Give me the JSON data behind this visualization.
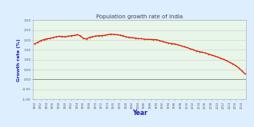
{
  "title": "Population growth rate of India",
  "xlabel": "Year",
  "ylabel": "Growth rate (%)",
  "background_color": "#e8f5e9",
  "outer_background": "#ddeeff",
  "line_color": "#dd2200",
  "title_color": "#444444",
  "label_color": "#2222aa",
  "ylim": [
    -1.0,
    3.0
  ],
  "yticks": [
    3.0,
    2.5,
    2.0,
    1.5,
    1.0,
    0.5,
    0.0,
    -0.5,
    -1.0
  ],
  "ytick_labels": [
    "3.00",
    "2.50",
    "2.00",
    "1.50",
    "1.00",
    "0.50",
    "0.00",
    "-0.50",
    "-1.00"
  ],
  "year_start": 1950,
  "year_end": 2019,
  "xtick_step": 2,
  "growth_data": {
    "years": [
      1950,
      1951,
      1952,
      1953,
      1954,
      1955,
      1956,
      1957,
      1958,
      1959,
      1960,
      1961,
      1962,
      1963,
      1964,
      1965,
      1966,
      1967,
      1968,
      1969,
      1970,
      1971,
      1972,
      1973,
      1974,
      1975,
      1976,
      1977,
      1978,
      1979,
      1980,
      1981,
      1982,
      1983,
      1984,
      1985,
      1986,
      1987,
      1988,
      1989,
      1990,
      1991,
      1992,
      1993,
      1994,
      1995,
      1996,
      1997,
      1998,
      1999,
      2000,
      2001,
      2002,
      2003,
      2004,
      2005,
      2006,
      2007,
      2008,
      2009,
      2010,
      2011,
      2012,
      2013,
      2014,
      2015,
      2016,
      2017,
      2018,
      2019
    ],
    "values": [
      1.8,
      1.88,
      1.96,
      2.02,
      2.06,
      2.08,
      2.12,
      2.16,
      2.19,
      2.18,
      2.17,
      2.19,
      2.22,
      2.23,
      2.27,
      2.22,
      2.08,
      2.06,
      2.13,
      2.17,
      2.2,
      2.22,
      2.22,
      2.24,
      2.27,
      2.3,
      2.28,
      2.27,
      2.25,
      2.22,
      2.16,
      2.14,
      2.12,
      2.1,
      2.07,
      2.07,
      2.04,
      2.03,
      2.03,
      2.02,
      2.02,
      1.97,
      1.93,
      1.88,
      1.84,
      1.82,
      1.8,
      1.76,
      1.71,
      1.66,
      1.62,
      1.56,
      1.51,
      1.45,
      1.41,
      1.38,
      1.34,
      1.29,
      1.24,
      1.19,
      1.14,
      1.08,
      1.02,
      0.95,
      0.87,
      0.79,
      0.7,
      0.58,
      0.44,
      0.28
    ]
  }
}
